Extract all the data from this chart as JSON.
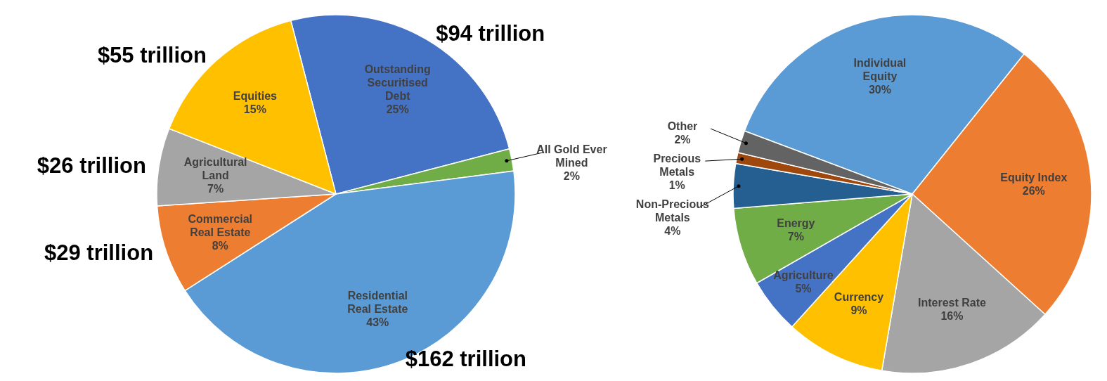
{
  "chart_data": [
    {
      "type": "pie",
      "categories": [
        "Outstanding Securitised Debt",
        "All Gold Ever Mined",
        "Residential Real Estate",
        "Commercial Real Estate",
        "Agricultural Land",
        "Equities"
      ],
      "values": [
        25,
        2,
        43,
        8,
        7,
        15
      ],
      "colors": [
        "#4472c4",
        "#70ad47",
        "#5b9bd5",
        "#ed7d31",
        "#a5a5a5",
        "#ffc000"
      ],
      "value_labels": [
        "25%",
        "2%",
        "43%",
        "8%",
        "7%",
        "15%"
      ],
      "annotations": [
        {
          "text": "$94 trillion",
          "x": "Outstanding Securitised Debt"
        },
        {
          "text": "$162 trillion",
          "x": "Residential Real Estate"
        },
        {
          "text": "$29 trillion",
          "x": "Commercial Real Estate"
        },
        {
          "text": "$26 trillion",
          "x": "Agricultural Land"
        },
        {
          "text": "$55 trillion",
          "x": "Equities"
        }
      ]
    },
    {
      "type": "pie",
      "categories": [
        "Individual Equity",
        "Equity Index",
        "Interest Rate",
        "Currency",
        "Agriculture",
        "Energy",
        "Non-Precious Metals",
        "Precious Metals",
        "Other"
      ],
      "values": [
        30,
        26,
        16,
        9,
        5,
        7,
        4,
        1,
        2
      ],
      "colors": [
        "#5b9bd5",
        "#ed7d31",
        "#a5a5a5",
        "#ffc000",
        "#4472c4",
        "#70ad47",
        "#255e91",
        "#9e480e",
        "#636363"
      ],
      "value_labels": [
        "30%",
        "26%",
        "16%",
        "9%",
        "5%",
        "7%",
        "4%",
        "1%",
        "2%"
      ]
    }
  ]
}
